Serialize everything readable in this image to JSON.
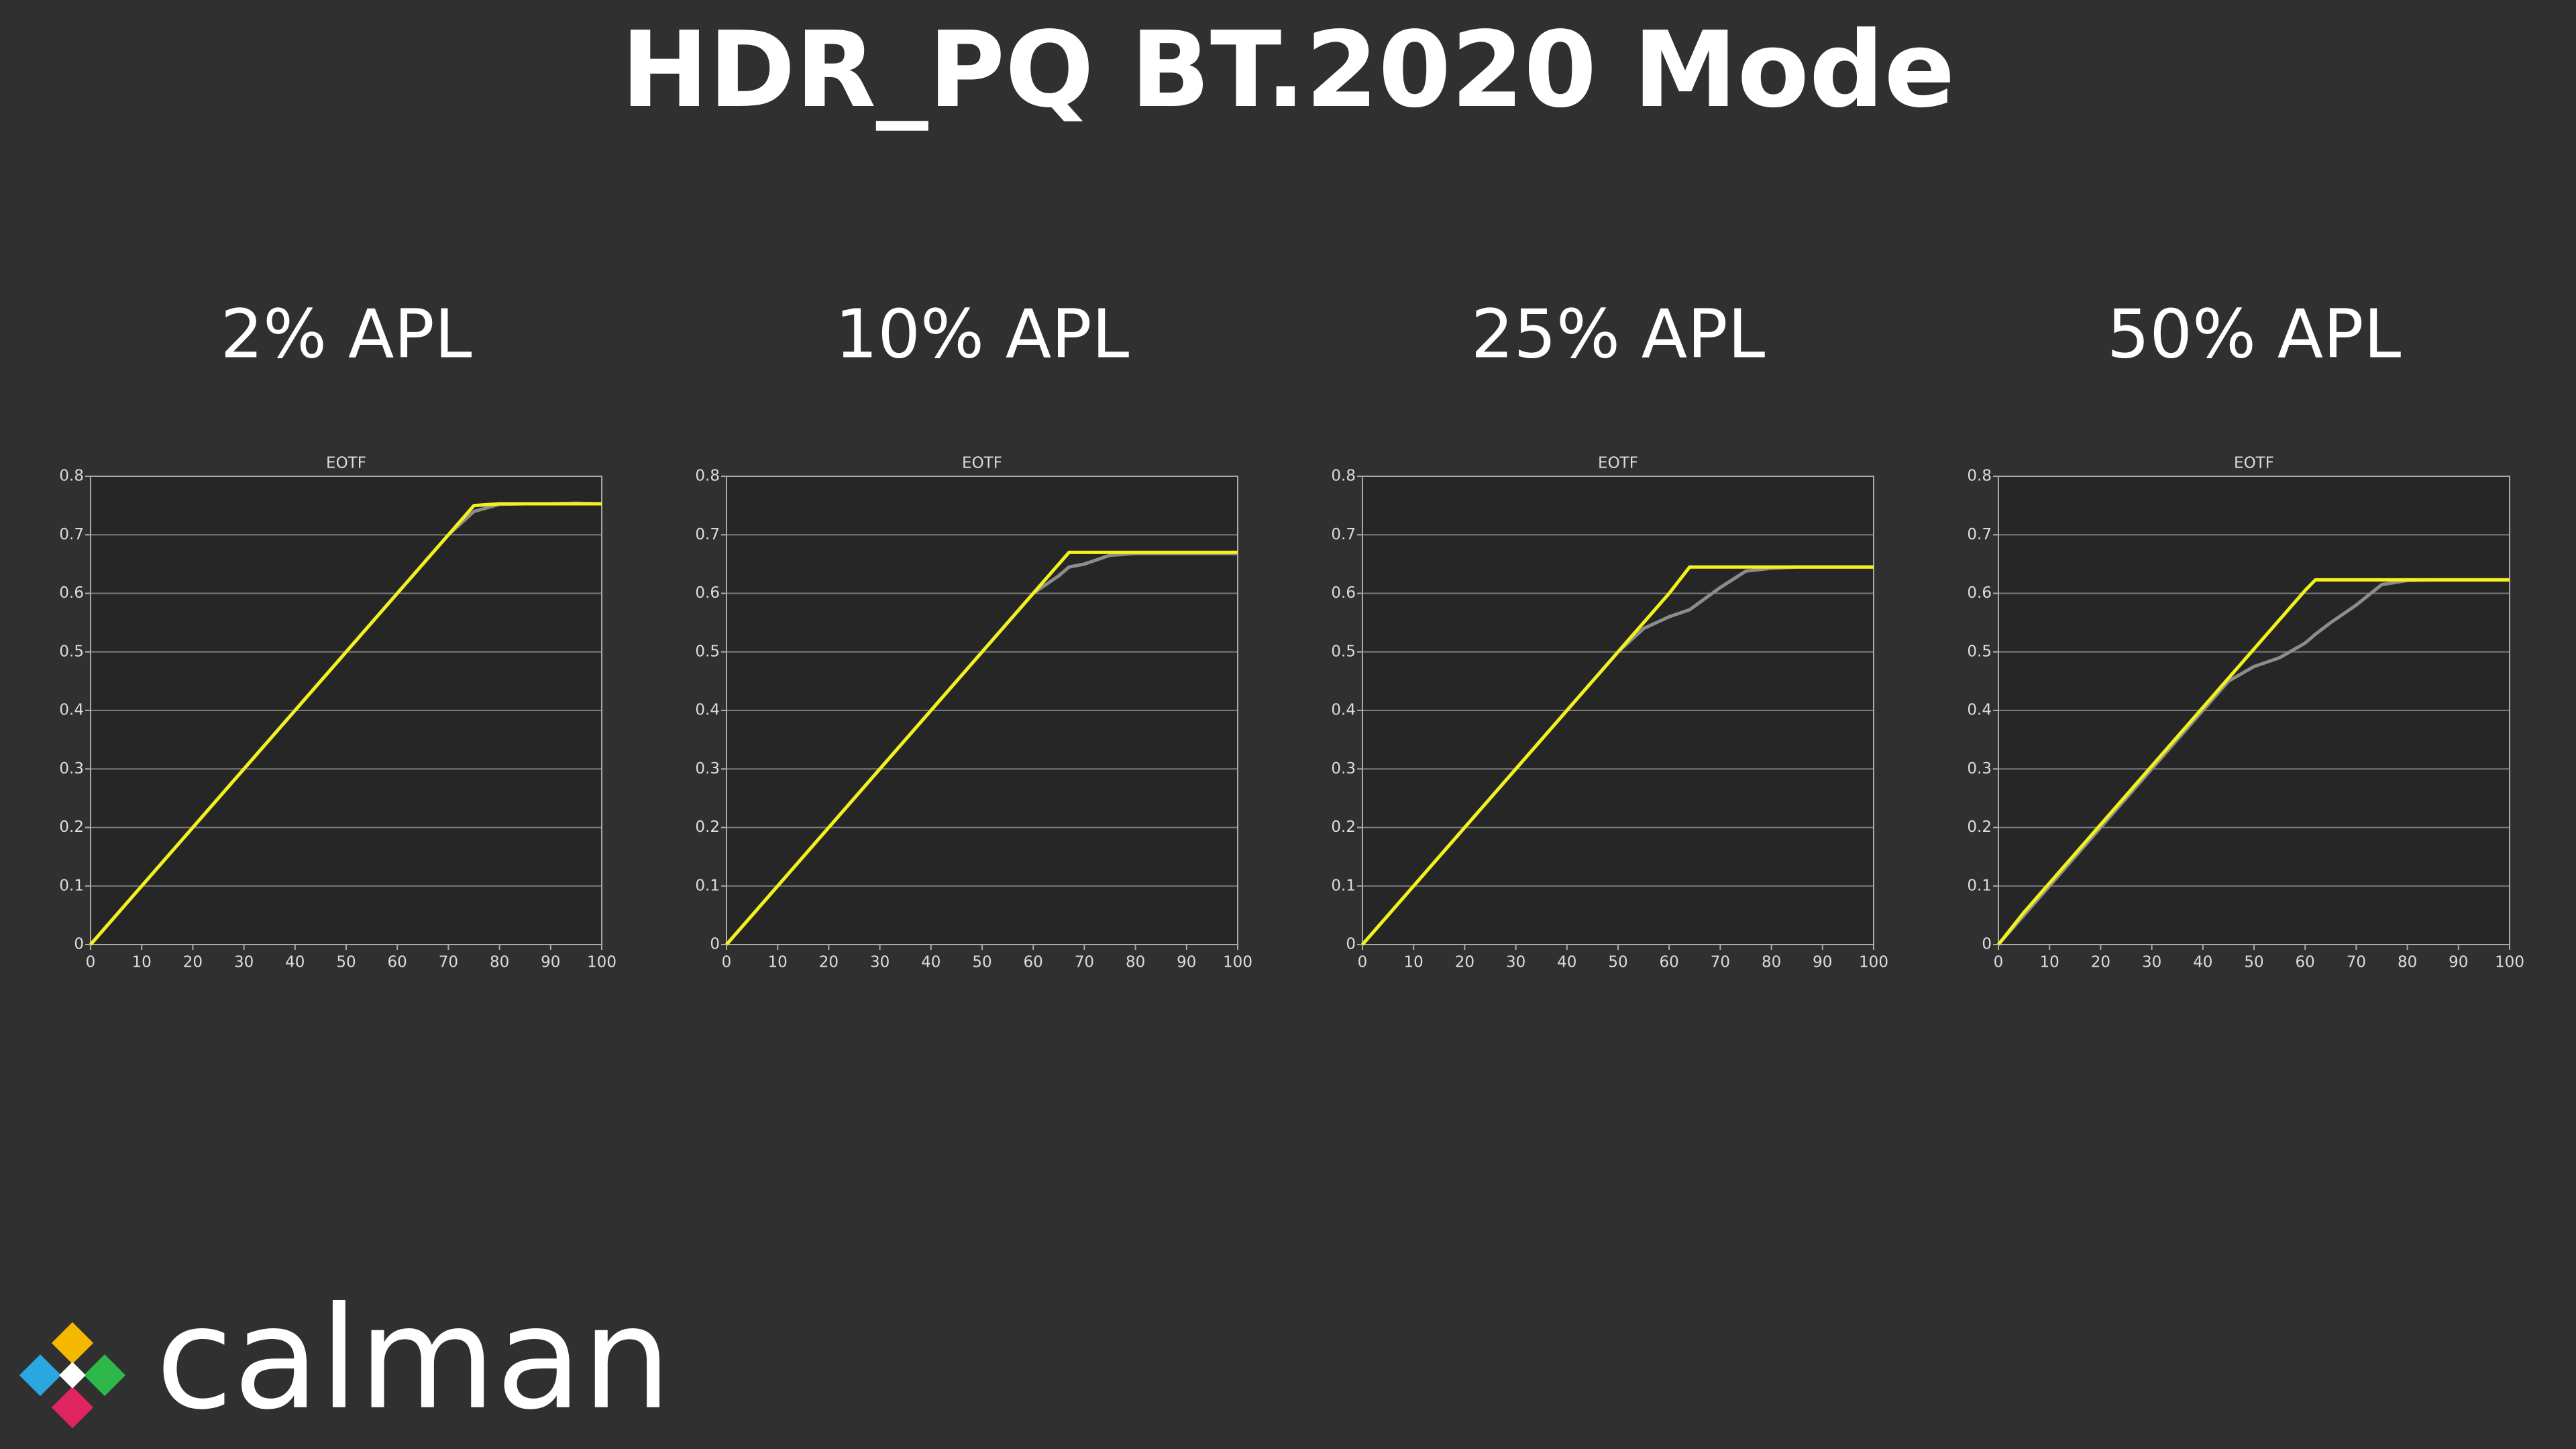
{
  "title": "HDR_PQ BT.2020 Mode",
  "logo": "calman",
  "chart_data": [
    {
      "type": "line",
      "heading": "2% APL",
      "title": "EOTF",
      "x": [
        0,
        5,
        10,
        15,
        20,
        25,
        30,
        35,
        40,
        45,
        50,
        55,
        60,
        65,
        70,
        75,
        80,
        85,
        90,
        95,
        100
      ],
      "series": [
        {
          "color": "#8c8c8c",
          "values": [
            0,
            0.05,
            0.1,
            0.15,
            0.2,
            0.25,
            0.3,
            0.35,
            0.4,
            0.45,
            0.5,
            0.55,
            0.6,
            0.65,
            0.7,
            0.74,
            0.752,
            0.753,
            0.753,
            0.754,
            0.753
          ]
        },
        {
          "color": "#f2f21c",
          "values": [
            0,
            0.05,
            0.1,
            0.15,
            0.2,
            0.25,
            0.3,
            0.35,
            0.4,
            0.45,
            0.5,
            0.55,
            0.6,
            0.65,
            0.7,
            0.75,
            0.753,
            0.753,
            0.753,
            0.753,
            0.753
          ]
        }
      ],
      "xlim": [
        0,
        100
      ],
      "xticks": [
        0,
        10,
        20,
        30,
        40,
        50,
        60,
        70,
        80,
        90,
        100
      ],
      "ylim": [
        0,
        0.8
      ],
      "yticks": [
        0,
        0.1,
        0.2,
        0.3,
        0.4,
        0.5,
        0.6,
        0.7,
        0.8
      ],
      "grid": true
    },
    {
      "type": "line",
      "heading": "10% APL",
      "title": "EOTF",
      "x": [
        0,
        5,
        10,
        15,
        20,
        25,
        30,
        35,
        40,
        45,
        50,
        55,
        60,
        65,
        67,
        70,
        75,
        80,
        85,
        90,
        95,
        100
      ],
      "series": [
        {
          "color": "#8c8c8c",
          "values": [
            0,
            0.05,
            0.1,
            0.15,
            0.2,
            0.25,
            0.3,
            0.35,
            0.4,
            0.45,
            0.5,
            0.55,
            0.6,
            0.63,
            0.645,
            0.65,
            0.665,
            0.668,
            0.668,
            0.668,
            0.668,
            0.668
          ]
        },
        {
          "color": "#f2f21c",
          "values": [
            0,
            0.05,
            0.1,
            0.15,
            0.2,
            0.25,
            0.3,
            0.35,
            0.4,
            0.45,
            0.5,
            0.55,
            0.6,
            0.65,
            0.67,
            0.67,
            0.67,
            0.67,
            0.67,
            0.67,
            0.67,
            0.67
          ]
        }
      ],
      "xlim": [
        0,
        100
      ],
      "xticks": [
        0,
        10,
        20,
        30,
        40,
        50,
        60,
        70,
        80,
        90,
        100
      ],
      "ylim": [
        0,
        0.8
      ],
      "yticks": [
        0,
        0.1,
        0.2,
        0.3,
        0.4,
        0.5,
        0.6,
        0.7,
        0.8
      ],
      "grid": true
    },
    {
      "type": "line",
      "heading": "25% APL",
      "title": "EOTF",
      "x": [
        0,
        5,
        10,
        15,
        20,
        25,
        30,
        35,
        40,
        45,
        50,
        55,
        60,
        64,
        70,
        75,
        80,
        85,
        90,
        95,
        100
      ],
      "series": [
        {
          "color": "#8c8c8c",
          "values": [
            0,
            0.05,
            0.1,
            0.15,
            0.2,
            0.25,
            0.3,
            0.35,
            0.4,
            0.45,
            0.5,
            0.54,
            0.56,
            0.572,
            0.61,
            0.638,
            0.643,
            0.645,
            0.645,
            0.645,
            0.645
          ]
        },
        {
          "color": "#f2f21c",
          "values": [
            0,
            0.05,
            0.1,
            0.15,
            0.2,
            0.25,
            0.3,
            0.35,
            0.4,
            0.45,
            0.5,
            0.55,
            0.6,
            0.645,
            0.645,
            0.645,
            0.645,
            0.645,
            0.645,
            0.645,
            0.645
          ]
        }
      ],
      "xlim": [
        0,
        100
      ],
      "xticks": [
        0,
        10,
        20,
        30,
        40,
        50,
        60,
        70,
        80,
        90,
        100
      ],
      "ylim": [
        0,
        0.8
      ],
      "yticks": [
        0,
        0.1,
        0.2,
        0.3,
        0.4,
        0.5,
        0.6,
        0.7,
        0.8
      ],
      "grid": true
    },
    {
      "type": "line",
      "heading": "50% APL",
      "title": "EOTF",
      "x": [
        0,
        5,
        10,
        15,
        20,
        25,
        30,
        35,
        40,
        45,
        50,
        55,
        60,
        62,
        65,
        70,
        75,
        80,
        85,
        90,
        95,
        100
      ],
      "series": [
        {
          "color": "#8c8c8c",
          "values": [
            0,
            0.05,
            0.1,
            0.15,
            0.2,
            0.25,
            0.3,
            0.35,
            0.4,
            0.45,
            0.475,
            0.49,
            0.515,
            0.53,
            0.55,
            0.58,
            0.615,
            0.622,
            0.623,
            0.623,
            0.623,
            0.623
          ]
        },
        {
          "color": "#f2f21c",
          "values": [
            0,
            0.055,
            0.105,
            0.155,
            0.205,
            0.255,
            0.305,
            0.355,
            0.405,
            0.455,
            0.505,
            0.555,
            0.605,
            0.623,
            0.623,
            0.623,
            0.623,
            0.623,
            0.623,
            0.623,
            0.623,
            0.623
          ]
        }
      ],
      "xlim": [
        0,
        100
      ],
      "xticks": [
        0,
        10,
        20,
        30,
        40,
        50,
        60,
        70,
        80,
        90,
        100
      ],
      "ylim": [
        0,
        0.8
      ],
      "yticks": [
        0,
        0.1,
        0.2,
        0.3,
        0.4,
        0.5,
        0.6,
        0.7,
        0.8
      ],
      "grid": true
    }
  ]
}
